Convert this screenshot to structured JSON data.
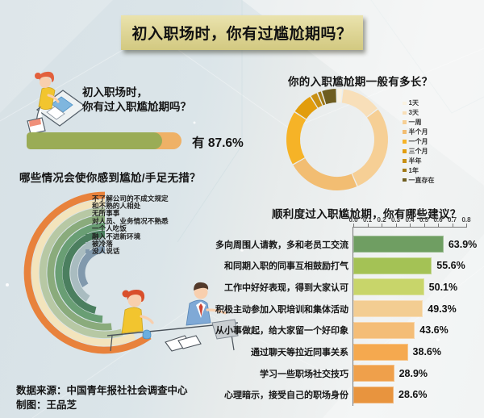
{
  "page": {
    "title": "初入职场时，你有过尴尬期吗？",
    "banner_color": "#ddd494",
    "background_color": "#dbe5e9"
  },
  "intro": {
    "line1": "初入职场时，",
    "line2": "你有过入职尴尬期吗？",
    "answer_label": "有",
    "answer_value": "87.6%"
  },
  "footer": {
    "source": "数据来源：中国青年报社社会调查中心",
    "credit": "制图：王品芝"
  },
  "chart_data": [
    {
      "id": "had-awkward-period",
      "type": "bar",
      "orientation": "horizontal",
      "categories": [
        "有"
      ],
      "values": [
        87.6
      ],
      "unit": "%",
      "xlim": [
        0,
        100
      ],
      "bar_color": "#9aac56",
      "track_color": "#efb166"
    },
    {
      "id": "duration-donut",
      "type": "pie",
      "donut": true,
      "title": "你的入职尴尬期一般有多长？",
      "legend_position": "right",
      "categories": [
        "1天",
        "3天",
        "一周",
        "半个月",
        "一个月",
        "三个月",
        "半年",
        "1年",
        "一直存在"
      ],
      "values": [
        2.0,
        12.9,
        28.8,
        23.3,
        17.4,
        7.0,
        2.4,
        1.4,
        4.8
      ],
      "colors": [
        "#f9f2e2",
        "#f8dfb9",
        "#f6cf95",
        "#f2bd72",
        "#f6b327",
        "#e29d0d",
        "#c88f12",
        "#a07816",
        "#6e5d20"
      ]
    },
    {
      "id": "awkward-situations",
      "type": "bar",
      "subtype": "radial-arc",
      "title": "哪些情况会使你感到尴尬/手足无措？",
      "categories": [
        "不了解公司的不成文规定",
        "和不熟的人相处",
        "无所事事",
        "对人员、业务情况不熟悉",
        "一个人吃饭",
        "融入不进新环境",
        "被冷落",
        "没人说话"
      ],
      "sweep_deg": [
        215,
        205,
        196,
        187,
        177,
        166,
        147,
        123
      ],
      "colors": [
        "#e8823c",
        "#f3e4bc",
        "#b7c8a4",
        "#8aab7c",
        "#699e74",
        "#4b7f5f",
        "#a9bcc0",
        "#8199ad"
      ]
    },
    {
      "id": "suggestions",
      "type": "bar",
      "orientation": "horizontal",
      "title": "顺利度过入职尴尬期，你有哪些建议？",
      "categories": [
        "多向周围人请教，多和老员工交流",
        "和同期入职的同事互相鼓励打气",
        "工作中好好表现，得到大家认可",
        "积极主动参加入职培训和集体活动",
        "从小事做起，给大家留一个好印象",
        "通过聊天等拉近同事关系",
        "学习一些职场社交技巧",
        "心理暗示，接受自己的职场身份"
      ],
      "values": [
        63.9,
        55.6,
        50.1,
        49.3,
        43.6,
        38.6,
        28.9,
        28.6
      ],
      "value_labels": [
        "63.9%",
        "55.6%",
        "50.1%",
        "49.3%",
        "43.6%",
        "38.6%",
        "28.9%",
        "28.6%"
      ],
      "unit": "%",
      "axis_ticks": [
        "0.0",
        "0.1",
        "0.2",
        "0.3",
        "0.4",
        "0.5",
        "0.6",
        "0.7",
        "0.8"
      ],
      "xlim": [
        0,
        0.8
      ],
      "colors": [
        "#6f9e62",
        "#a4c255",
        "#c8d56a",
        "#f3cd92",
        "#f4bd77",
        "#f5a94f",
        "#efa04b",
        "#e8943e"
      ]
    }
  ]
}
